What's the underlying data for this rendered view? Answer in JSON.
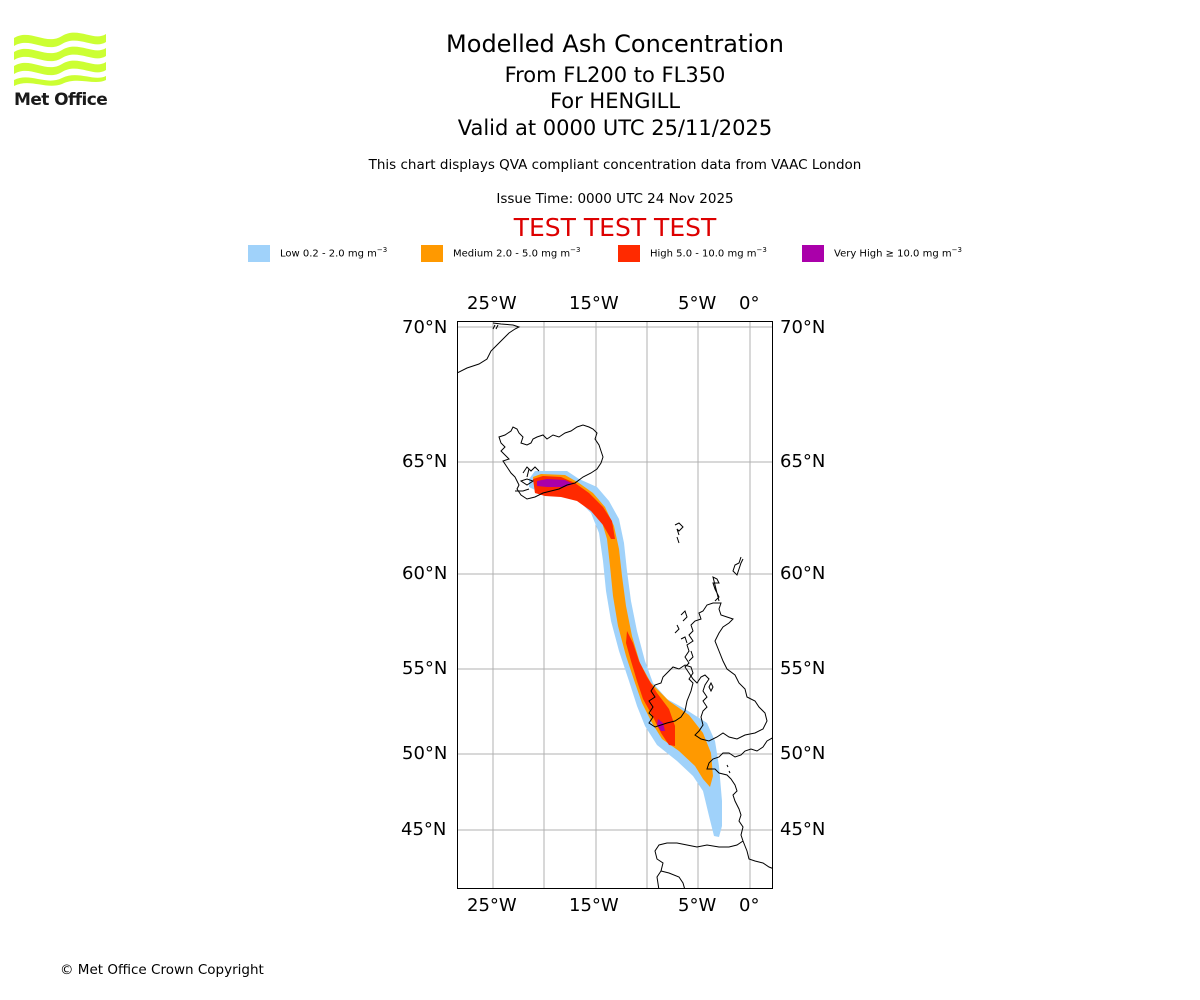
{
  "logo": {
    "text": "Met Office",
    "color": "#ccff33"
  },
  "header": {
    "title": "Modelled Ash Concentration",
    "levels": "From FL200 to FL350",
    "volcano": "For HENGILL",
    "valid": "Valid at 0000 UTC 25/11/2025",
    "source_note": "This chart displays QVA compliant concentration data from VAAC London",
    "issue_time": "Issue Time: 0000 UTC 24 Nov 2025",
    "test_banner": "TEST TEST TEST",
    "test_color": "#dd0000"
  },
  "legend": [
    {
      "name": "Low",
      "label": "Low 0.2 - 2.0 mg m",
      "sup": "−3",
      "color": "#a0d2fa"
    },
    {
      "name": "Medium",
      "label": "Medium 2.0 - 5.0 mg m",
      "sup": "−3",
      "color": "#ff9900"
    },
    {
      "name": "High",
      "label": "High 5.0 - 10.0 mg m",
      "sup": "−3",
      "color": "#ff2a00"
    },
    {
      "name": "Very High",
      "label": "Very High ≥ 10.0 mg m",
      "sup": "−3",
      "color": "#aa00aa"
    }
  ],
  "map": {
    "lon_ticks": [
      "25°W",
      "15°W",
      "5°W",
      "0°"
    ],
    "lat_ticks": [
      "70°N",
      "65°N",
      "60°N",
      "55°N",
      "50°N",
      "45°N"
    ],
    "grid_color": "#b0b0b0"
  },
  "footer": {
    "copyright": "© Met Office Crown Copyright"
  }
}
